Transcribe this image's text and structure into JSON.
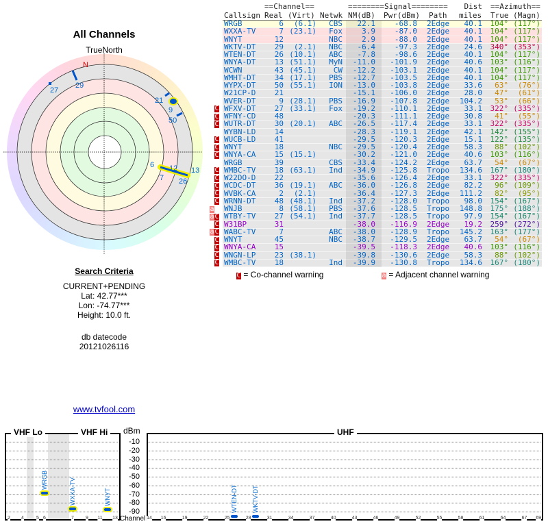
{
  "left": {
    "title": "All Channels",
    "truenorth": "TrueNorth",
    "north": "N",
    "polar_labels": [
      "29",
      "27",
      "21",
      "9",
      "50",
      "6",
      "7",
      "12",
      "26",
      "13"
    ],
    "criteria_title": "Search Criteria",
    "criteria": [
      "CURRENT+PENDING",
      "Lat: 42.77***",
      "Lon: -74.77***",
      "Height: 10.0 ft."
    ],
    "datecode_label": "db datecode",
    "datecode": "20121026116",
    "link": "www.tvfool.com"
  },
  "table": {
    "header1": {
      "channel": "==Channel==",
      "signal": "========Signal========",
      "dist": "Dist",
      "azimuth": "==Azimuth=="
    },
    "header2": {
      "callsign": "Callsign",
      "real": "Real",
      "virt": "(Virt)",
      "netwk": "Netwk",
      "nm": "NM(dB)",
      "pwr": "Pwr(dBm)",
      "path": "Path",
      "dist": "miles",
      "true": "True",
      "magn": "(Magn)"
    },
    "rows": [
      {
        "w": "",
        "callsign": "WRGB",
        "real": "6",
        "virt": "(6.1)",
        "netwk": "CBS",
        "nm": "22.1",
        "pwr": "-68.8",
        "path": "2Edge",
        "dist": "40.1",
        "true": "104°",
        "magn": "(117°)",
        "bg": "#ffffdc",
        "cc": "#0066cc",
        "ac": "#3a9a00"
      },
      {
        "w": "",
        "callsign": "WXXA-TV",
        "real": "7",
        "virt": "(23.1)",
        "netwk": "Fox",
        "nm": "3.9",
        "pwr": "-87.0",
        "path": "2Edge",
        "dist": "40.1",
        "true": "104°",
        "magn": "(117°)",
        "bg": "#ffe0e0",
        "cc": "#0066cc",
        "ac": "#3a9a00"
      },
      {
        "w": "",
        "callsign": "WNYT",
        "real": "12",
        "virt": "",
        "netwk": "NBC",
        "nm": "2.9",
        "pwr": "-88.0",
        "path": "2Edge",
        "dist": "40.1",
        "true": "104°",
        "magn": "(117°)",
        "bg": "#ffe0e0",
        "cc": "#0066cc",
        "ac": "#3a9a00"
      },
      {
        "w": "",
        "callsign": "WKTV-DT",
        "real": "29",
        "virt": "(2.1)",
        "netwk": "NBC",
        "nm": "-6.4",
        "pwr": "-97.3",
        "path": "2Edge",
        "dist": "24.6",
        "true": "340°",
        "magn": "(353°)",
        "bg": "#e6e6e6",
        "cc": "#0066cc",
        "ac": "#cc0044"
      },
      {
        "w": "",
        "callsign": "WTEN-DT",
        "real": "26",
        "virt": "(10.1)",
        "netwk": "ABC",
        "nm": "-7.8",
        "pwr": "-98.6",
        "path": "2Edge",
        "dist": "40.1",
        "true": "104°",
        "magn": "(117°)",
        "bg": "#e6e6e6",
        "cc": "#0066cc",
        "ac": "#3a9a00"
      },
      {
        "w": "",
        "callsign": "WNYA-DT",
        "real": "13",
        "virt": "(51.1)",
        "netwk": "MyN",
        "nm": "-11.0",
        "pwr": "-101.9",
        "path": "2Edge",
        "dist": "40.6",
        "true": "103°",
        "magn": "(116°)",
        "bg": "#e6e6e6",
        "cc": "#0066cc",
        "ac": "#3a9a00"
      },
      {
        "w": "",
        "callsign": "WCWN",
        "real": "43",
        "virt": "(45.1)",
        "netwk": "CW",
        "nm": "-12.2",
        "pwr": "-103.1",
        "path": "2Edge",
        "dist": "40.1",
        "true": "104°",
        "magn": "(117°)",
        "bg": "#e6e6e6",
        "cc": "#0066cc",
        "ac": "#3a9a00"
      },
      {
        "w": "",
        "callsign": "WMHT-DT",
        "real": "34",
        "virt": "(17.1)",
        "netwk": "PBS",
        "nm": "-12.7",
        "pwr": "-103.5",
        "path": "2Edge",
        "dist": "40.1",
        "true": "104°",
        "magn": "(117°)",
        "bg": "#e6e6e6",
        "cc": "#0066cc",
        "ac": "#3a9a00"
      },
      {
        "w": "",
        "callsign": "WYPX-DT",
        "real": "50",
        "virt": "(55.1)",
        "netwk": "ION",
        "nm": "-13.0",
        "pwr": "-103.8",
        "path": "2Edge",
        "dist": "33.6",
        "true": "63°",
        "magn": "(76°)",
        "bg": "#e6e6e6",
        "cc": "#0066cc",
        "ac": "#cc8800"
      },
      {
        "w": "",
        "callsign": "W21CP-D",
        "real": "21",
        "virt": "",
        "netwk": "",
        "nm": "-15.1",
        "pwr": "-106.0",
        "path": "2Edge",
        "dist": "28.0",
        "true": "47°",
        "magn": "(61°)",
        "bg": "#e6e6e6",
        "cc": "#0066cc",
        "ac": "#cc8800"
      },
      {
        "w": "",
        "callsign": "WVER-DT",
        "real": "9",
        "virt": "(28.1)",
        "netwk": "PBS",
        "nm": "-16.9",
        "pwr": "-107.8",
        "path": "2Edge",
        "dist": "104.2",
        "true": "53°",
        "magn": "(66°)",
        "bg": "#e6e6e6",
        "cc": "#0066cc",
        "ac": "#cc8800"
      },
      {
        "w": "C",
        "callsign": "WFXV-DT",
        "real": "27",
        "virt": "(33.1)",
        "netwk": "Fox",
        "nm": "-19.2",
        "pwr": "-110.1",
        "path": "2Edge",
        "dist": "33.1",
        "true": "322°",
        "magn": "(335°)",
        "bg": "#e6e6e6",
        "cc": "#0066cc",
        "ac": "#cc0066"
      },
      {
        "w": "C",
        "callsign": "WFNY-CD",
        "real": "48",
        "virt": "",
        "netwk": "",
        "nm": "-20.3",
        "pwr": "-111.1",
        "path": "2Edge",
        "dist": "30.8",
        "true": "41°",
        "magn": "(55°)",
        "bg": "#e6e6e6",
        "cc": "#0066cc",
        "ac": "#cc8800"
      },
      {
        "w": "C",
        "callsign": "WUTR-DT",
        "real": "30",
        "virt": "(20.1)",
        "netwk": "ABC",
        "nm": "-26.5",
        "pwr": "-117.4",
        "path": "2Edge",
        "dist": "33.1",
        "true": "322°",
        "magn": "(335°)",
        "bg": "#e6e6e6",
        "cc": "#0066cc",
        "ac": "#cc0066"
      },
      {
        "w": "",
        "callsign": "WYBN-LD",
        "real": "14",
        "virt": "",
        "netwk": "",
        "nm": "-28.3",
        "pwr": "-119.1",
        "path": "2Edge",
        "dist": "42.1",
        "true": "142°",
        "magn": "(155°)",
        "bg": "#e6e6e6",
        "cc": "#0066cc",
        "ac": "#208a40"
      },
      {
        "w": "C",
        "callsign": "WUCB-LD",
        "real": "41",
        "virt": "",
        "netwk": "",
        "nm": "-29.5",
        "pwr": "-120.3",
        "path": "2Edge",
        "dist": "15.1",
        "true": "122°",
        "magn": "(135°)",
        "bg": "#e6e6e6",
        "cc": "#0066cc",
        "ac": "#208a40"
      },
      {
        "w": "C",
        "callsign": "WNYT",
        "real": "18",
        "virt": "",
        "netwk": "NBC",
        "nm": "-29.5",
        "pwr": "-120.4",
        "path": "2Edge",
        "dist": "58.3",
        "true": "88°",
        "magn": "(102°)",
        "bg": "#e6e6e6",
        "cc": "#0066cc",
        "ac": "#6a9a00"
      },
      {
        "w": "C",
        "callsign": "WNYA-CA",
        "real": "15",
        "virt": "(15.1)",
        "netwk": "",
        "nm": "-30.2",
        "pwr": "-121.0",
        "path": "2Edge",
        "dist": "40.6",
        "true": "103°",
        "magn": "(116°)",
        "bg": "#e6e6e6",
        "cc": "#0066cc",
        "ac": "#3a9a00"
      },
      {
        "w": "",
        "callsign": "WRGB",
        "real": "39",
        "virt": "",
        "netwk": "CBS",
        "nm": "-33.4",
        "pwr": "-124.2",
        "path": "2Edge",
        "dist": "63.7",
        "true": "54°",
        "magn": "(67°)",
        "bg": "#e6e6e6",
        "cc": "#0066cc",
        "ac": "#cc8800"
      },
      {
        "w": "C",
        "callsign": "WMBC-TV",
        "real": "18",
        "virt": "(63.1)",
        "netwk": "Ind",
        "nm": "-34.9",
        "pwr": "-125.8",
        "path": "Tropo",
        "dist": "134.6",
        "true": "167°",
        "magn": "(180°)",
        "bg": "#e6e6e6",
        "cc": "#0066cc",
        "ac": "#1a8a7a"
      },
      {
        "w": "C",
        "callsign": "W22DO-D",
        "real": "22",
        "virt": "",
        "netwk": "",
        "nm": "-35.6",
        "pwr": "-126.4",
        "path": "2Edge",
        "dist": "33.1",
        "true": "322°",
        "magn": "(335°)",
        "bg": "#e6e6e6",
        "cc": "#0066cc",
        "ac": "#cc0066"
      },
      {
        "w": "C",
        "callsign": "WCDC-DT",
        "real": "36",
        "virt": "(19.1)",
        "netwk": "ABC",
        "nm": "-36.0",
        "pwr": "-126.8",
        "path": "2Edge",
        "dist": "82.2",
        "true": "96°",
        "magn": "(109°)",
        "bg": "#e6e6e6",
        "cc": "#0066cc",
        "ac": "#6a9a00"
      },
      {
        "w": "C",
        "callsign": "WVBK-CA",
        "real": "2",
        "virt": "(2.1)",
        "netwk": "",
        "nm": "-36.4",
        "pwr": "-127.3",
        "path": "2Edge",
        "dist": "111.2",
        "true": "82°",
        "magn": "(95°)",
        "bg": "#e6e6e6",
        "cc": "#0066cc",
        "ac": "#8a9a00"
      },
      {
        "w": "C",
        "callsign": "WRNN-DT",
        "real": "48",
        "virt": "(48.1)",
        "netwk": "Ind",
        "nm": "-37.2",
        "pwr": "-128.0",
        "path": "Tropo",
        "dist": "98.0",
        "true": "154°",
        "magn": "(167°)",
        "bg": "#e6e6e6",
        "cc": "#0066cc",
        "ac": "#1a8a6a"
      },
      {
        "w": "a",
        "callsign": "WNJB",
        "real": "8",
        "virt": "(58.1)",
        "netwk": "PBS",
        "nm": "-37.6",
        "pwr": "-128.5",
        "path": "Tropo",
        "dist": "148.8",
        "true": "175°",
        "magn": "(188°)",
        "bg": "#e6e6e6",
        "cc": "#0066cc",
        "ac": "#1a8a7a"
      },
      {
        "w": "aC",
        "callsign": "WTBY-TV",
        "real": "27",
        "virt": "(54.1)",
        "netwk": "Ind",
        "nm": "-37.7",
        "pwr": "-128.5",
        "path": "Tropo",
        "dist": "97.9",
        "true": "154°",
        "magn": "(167°)",
        "bg": "#e6e6e6",
        "cc": "#0066cc",
        "ac": "#1a8a6a"
      },
      {
        "w": "C",
        "callsign": "W31BP",
        "real": "31",
        "virt": "",
        "netwk": "",
        "nm": "-38.0",
        "pwr": "-116.9",
        "path": "2Edge",
        "dist": "19.2",
        "true": "259°",
        "magn": "(272°)",
        "bg": "#e6e6e6",
        "cc": "#9900cc",
        "ac": "#4a10a0"
      },
      {
        "w": "aC",
        "callsign": "WABC-TV",
        "real": "7",
        "virt": "",
        "netwk": "ABC",
        "nm": "-38.0",
        "pwr": "-128.9",
        "path": "Tropo",
        "dist": "145.2",
        "true": "163°",
        "magn": "(177°)",
        "bg": "#e6e6e6",
        "cc": "#0066cc",
        "ac": "#1a8a7a"
      },
      {
        "w": "C",
        "callsign": "WNYT",
        "real": "45",
        "virt": "",
        "netwk": "NBC",
        "nm": "-38.7",
        "pwr": "-129.5",
        "path": "2Edge",
        "dist": "63.7",
        "true": "54°",
        "magn": "(67°)",
        "bg": "#e6e6e6",
        "cc": "#0066cc",
        "ac": "#cc8800"
      },
      {
        "w": "C",
        "callsign": "WNYA-CA",
        "real": "15",
        "virt": "",
        "netwk": "",
        "nm": "-39.5",
        "pwr": "-118.3",
        "path": "2Edge",
        "dist": "40.6",
        "true": "103°",
        "magn": "(116°)",
        "bg": "#e6e6e6",
        "cc": "#9900cc",
        "ac": "#3a9a00"
      },
      {
        "w": "C",
        "callsign": "WNGN-LP",
        "real": "23",
        "virt": "(38.1)",
        "netwk": "",
        "nm": "-39.8",
        "pwr": "-130.6",
        "path": "2Edge",
        "dist": "58.3",
        "true": "88°",
        "magn": "(102°)",
        "bg": "#e6e6e6",
        "cc": "#0066cc",
        "ac": "#6a9a00"
      },
      {
        "w": "C",
        "callsign": "WMBC-TV",
        "real": "18",
        "virt": "",
        "netwk": "Ind",
        "nm": "-39.9",
        "pwr": "-130.8",
        "path": "Tropo",
        "dist": "134.6",
        "true": "167°",
        "magn": "(180°)",
        "bg": "#e6e6e6",
        "cc": "#0066cc",
        "ac": "#1a8a7a"
      }
    ],
    "legend": {
      "co_icon": "C",
      "co": "= Co-channel warning",
      "adj_icon": "a",
      "adj": "= Adjacent channel warning"
    }
  },
  "spectrum": {
    "vhf_lo": "VHF Lo",
    "vhf_hi": "VHF Hi",
    "uhf": "UHF",
    "unit": "dBm",
    "channel_label": "Channel",
    "dbm_ticks": [
      "-10",
      "-20",
      "-30",
      "-40",
      "-50",
      "-60",
      "-70",
      "-80",
      "-90"
    ],
    "vhf_ticks": [
      "2",
      "4",
      "5",
      "6",
      "7",
      "9",
      "11",
      "13"
    ],
    "uhf_ticks": [
      "14",
      "16",
      "19",
      "22",
      "25",
      "28",
      "31",
      "34",
      "37",
      "40",
      "43",
      "46",
      "49",
      "52",
      "55",
      "58",
      "61",
      "64",
      "67",
      "69"
    ],
    "stations": [
      {
        "callsign": "WRGB",
        "channel": 6,
        "dbm": -68.8,
        "highlight": true
      },
      {
        "callsign": "WXXA-TV",
        "channel": 7,
        "dbm": -87.0,
        "highlight": true
      },
      {
        "callsign": "WNYT",
        "channel": 12,
        "dbm": -88.0,
        "highlight": true
      },
      {
        "callsign": "WTEN-DT",
        "channel": 26,
        "dbm": -98.6,
        "highlight": false
      },
      {
        "callsign": "WKTV-DT",
        "channel": 29,
        "dbm": -97.3,
        "highlight": false
      }
    ]
  }
}
